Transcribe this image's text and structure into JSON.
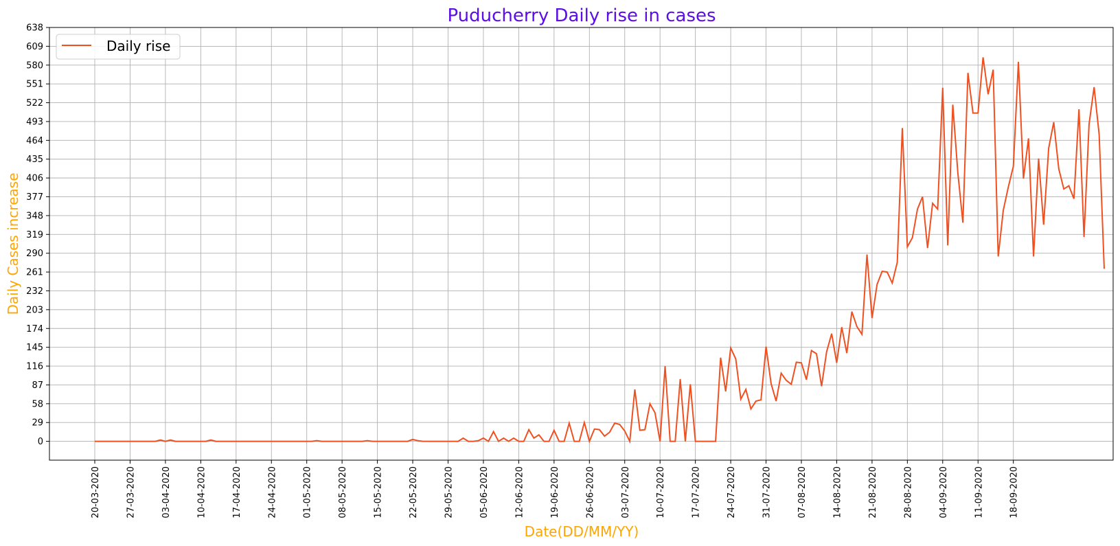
{
  "chart_data": {
    "type": "line",
    "title": "Puducherry Daily rise in cases",
    "xlabel": "Date(DD/MM/YY)",
    "ylabel": "Daily Cases increase",
    "grid": true,
    "legend_position": "top-left",
    "colors": {
      "title": "#5b0ee6",
      "axis_label": "#ffa500",
      "line": "#f05020"
    },
    "ylim": [
      -29,
      638
    ],
    "y_ticks": [
      0,
      29,
      58,
      87,
      116,
      145,
      174,
      203,
      232,
      261,
      290,
      319,
      348,
      377,
      406,
      435,
      464,
      493,
      522,
      551,
      580,
      609,
      638
    ],
    "x_tick_labels": [
      "20-03-2020",
      "27-03-2020",
      "03-04-2020",
      "10-04-2020",
      "17-04-2020",
      "24-04-2020",
      "01-05-2020",
      "08-05-2020",
      "15-05-2020",
      "22-05-2020",
      "29-05-2020",
      "05-06-2020",
      "12-06-2020",
      "19-06-2020",
      "26-06-2020",
      "03-07-2020",
      "10-07-2020",
      "17-07-2020",
      "24-07-2020",
      "31-07-2020",
      "07-08-2020",
      "14-08-2020",
      "21-08-2020",
      "28-08-2020",
      "04-09-2020",
      "11-09-2020",
      "18-09-2020"
    ],
    "series": [
      {
        "name": "Daily rise",
        "start_date": "20-03-2020",
        "values": [
          0,
          0,
          0,
          0,
          0,
          0,
          0,
          0,
          0,
          0,
          0,
          0,
          0,
          2,
          0,
          2,
          0,
          0,
          0,
          0,
          0,
          0,
          0,
          2,
          0,
          0,
          0,
          0,
          0,
          0,
          0,
          0,
          0,
          0,
          0,
          0,
          0,
          0,
          0,
          0,
          0,
          0,
          0,
          0,
          1,
          0,
          0,
          0,
          0,
          0,
          0,
          0,
          0,
          0,
          1,
          0,
          0,
          0,
          0,
          0,
          0,
          0,
          0,
          3,
          1,
          0,
          0,
          0,
          0,
          0,
          0,
          0,
          0,
          5,
          0,
          0,
          1,
          5,
          0,
          15,
          0,
          5,
          0,
          5,
          0,
          0,
          18,
          5,
          10,
          0,
          0,
          17,
          0,
          0,
          28,
          0,
          0,
          29,
          0,
          19,
          18,
          8,
          14,
          28,
          26,
          16,
          0,
          80,
          17,
          18,
          58,
          44,
          0,
          116,
          0,
          0,
          96,
          0,
          88,
          0,
          0,
          0,
          0,
          0,
          129,
          77,
          144,
          127,
          65,
          80,
          50,
          62,
          64,
          146,
          89,
          62,
          105,
          94,
          88,
          122,
          121,
          95,
          140,
          135,
          85,
          138,
          166,
          121,
          176,
          136,
          200,
          177,
          165,
          288,
          190,
          242,
          262,
          261,
          244,
          276,
          483,
          300,
          314,
          358,
          377,
          298,
          367,
          358,
          545,
          302,
          519,
          414,
          337,
          568,
          506,
          506,
          592,
          535,
          573,
          285,
          356,
          392,
          424,
          585,
          405,
          467,
          285,
          436,
          334,
          452,
          492,
          420,
          389,
          394,
          374,
          512,
          315,
          489,
          546,
          473,
          266
        ]
      }
    ]
  }
}
